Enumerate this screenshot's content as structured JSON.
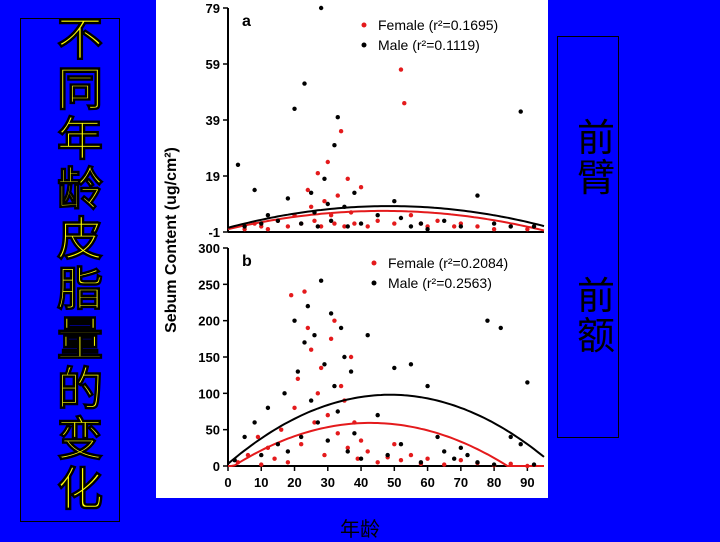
{
  "slide_title": "不同年龄皮脂量的变化",
  "right_labels": [
    "前臂",
    "前额"
  ],
  "x_caption": "年龄",
  "colors": {
    "background": "#0000ff",
    "title": "#ffff00",
    "female": "#e41a1c",
    "male": "#000000"
  },
  "chart_data": [
    {
      "type": "scatter",
      "panel_label": "a",
      "title": "",
      "ylabel": "Sebum Content (ug/cm²)",
      "ylim": [
        -1,
        79
      ],
      "yticks": [
        -1,
        19,
        39,
        59,
        79
      ],
      "xlim": [
        0,
        95
      ],
      "legend_position": "top-right",
      "series": [
        {
          "name": "Female",
          "r2": "0.1695",
          "legend": "Female (r²=0.1695)",
          "color": "#e41a1c",
          "fit": {
            "a": 0.0,
            "b": 0.28,
            "c": -0.003
          },
          "points": [
            [
              5,
              0
            ],
            [
              8,
              2
            ],
            [
              10,
              1
            ],
            [
              12,
              0
            ],
            [
              15,
              3
            ],
            [
              18,
              1
            ],
            [
              20,
              5
            ],
            [
              22,
              2
            ],
            [
              24,
              14
            ],
            [
              25,
              8
            ],
            [
              26,
              3
            ],
            [
              27,
              20
            ],
            [
              28,
              1
            ],
            [
              29,
              10
            ],
            [
              30,
              24
            ],
            [
              31,
              5
            ],
            [
              32,
              2
            ],
            [
              33,
              12
            ],
            [
              34,
              35
            ],
            [
              35,
              1
            ],
            [
              36,
              18
            ],
            [
              37,
              6
            ],
            [
              38,
              2
            ],
            [
              40,
              15
            ],
            [
              42,
              1
            ],
            [
              45,
              3
            ],
            [
              50,
              2
            ],
            [
              52,
              57
            ],
            [
              53,
              45
            ],
            [
              55,
              5
            ],
            [
              58,
              2
            ],
            [
              60,
              1
            ],
            [
              63,
              3
            ],
            [
              68,
              1
            ],
            [
              70,
              2
            ],
            [
              75,
              1
            ],
            [
              80,
              0
            ],
            [
              85,
              1
            ],
            [
              90,
              0
            ]
          ]
        },
        {
          "name": "Male",
          "r2": "0.1119",
          "legend": "Male (r²=0.1119)",
          "color": "#000000",
          "fit": {
            "a": 0.5,
            "b": 0.32,
            "c": -0.0033
          },
          "points": [
            [
              3,
              23
            ],
            [
              5,
              1
            ],
            [
              8,
              14
            ],
            [
              10,
              2
            ],
            [
              12,
              5
            ],
            [
              15,
              3
            ],
            [
              18,
              11
            ],
            [
              20,
              43
            ],
            [
              22,
              2
            ],
            [
              23,
              52
            ],
            [
              25,
              13
            ],
            [
              26,
              6
            ],
            [
              27,
              1
            ],
            [
              28,
              79
            ],
            [
              29,
              18
            ],
            [
              30,
              9
            ],
            [
              31,
              3
            ],
            [
              32,
              30
            ],
            [
              33,
              40
            ],
            [
              35,
              8
            ],
            [
              36,
              1
            ],
            [
              38,
              13
            ],
            [
              40,
              2
            ],
            [
              45,
              5
            ],
            [
              50,
              10
            ],
            [
              52,
              4
            ],
            [
              55,
              1
            ],
            [
              58,
              2
            ],
            [
              60,
              0
            ],
            [
              65,
              3
            ],
            [
              70,
              1
            ],
            [
              75,
              12
            ],
            [
              80,
              2
            ],
            [
              85,
              1
            ],
            [
              88,
              42
            ],
            [
              92,
              1
            ]
          ]
        }
      ]
    },
    {
      "type": "scatter",
      "panel_label": "b",
      "title": "",
      "xlabel": "",
      "ylim": [
        0,
        300
      ],
      "yticks": [
        0,
        50,
        100,
        150,
        200,
        250,
        300
      ],
      "xlim": [
        0,
        95
      ],
      "xticks": [
        0,
        10,
        20,
        30,
        40,
        50,
        60,
        70,
        80,
        90
      ],
      "legend_position": "top-right",
      "series": [
        {
          "name": "Female",
          "r2": "0.2084",
          "legend": "Female (r²=0.2084)",
          "color": "#e41a1c",
          "fit": {
            "a": -5,
            "b": 3.0,
            "c": -0.035
          },
          "points": [
            [
              3,
              5
            ],
            [
              6,
              15
            ],
            [
              9,
              40
            ],
            [
              10,
              2
            ],
            [
              12,
              25
            ],
            [
              14,
              10
            ],
            [
              16,
              50
            ],
            [
              18,
              5
            ],
            [
              19,
              235
            ],
            [
              20,
              80
            ],
            [
              21,
              120
            ],
            [
              22,
              30
            ],
            [
              23,
              240
            ],
            [
              24,
              190
            ],
            [
              25,
              160
            ],
            [
              26,
              60
            ],
            [
              27,
              100
            ],
            [
              28,
              135
            ],
            [
              29,
              15
            ],
            [
              30,
              70
            ],
            [
              31,
              175
            ],
            [
              32,
              200
            ],
            [
              33,
              45
            ],
            [
              34,
              110
            ],
            [
              35,
              90
            ],
            [
              36,
              25
            ],
            [
              37,
              150
            ],
            [
              38,
              60
            ],
            [
              39,
              10
            ],
            [
              40,
              35
            ],
            [
              42,
              20
            ],
            [
              45,
              5
            ],
            [
              48,
              12
            ],
            [
              50,
              30
            ],
            [
              52,
              8
            ],
            [
              55,
              15
            ],
            [
              58,
              3
            ],
            [
              60,
              10
            ],
            [
              65,
              2
            ],
            [
              70,
              8
            ],
            [
              75,
              4
            ],
            [
              80,
              1
            ],
            [
              85,
              3
            ],
            [
              90,
              0
            ]
          ]
        },
        {
          "name": "Male",
          "r2": "0.2563",
          "legend": "Male (r²=0.2563)",
          "color": "#000000",
          "fit": {
            "a": 3,
            "b": 3.9,
            "c": -0.04
          },
          "points": [
            [
              2,
              8
            ],
            [
              5,
              40
            ],
            [
              8,
              60
            ],
            [
              10,
              15
            ],
            [
              12,
              80
            ],
            [
              15,
              30
            ],
            [
              17,
              100
            ],
            [
              18,
              20
            ],
            [
              20,
              200
            ],
            [
              21,
              130
            ],
            [
              22,
              40
            ],
            [
              23,
              170
            ],
            [
              24,
              220
            ],
            [
              25,
              90
            ],
            [
              26,
              180
            ],
            [
              27,
              60
            ],
            [
              28,
              255
            ],
            [
              29,
              140
            ],
            [
              30,
              35
            ],
            [
              31,
              210
            ],
            [
              32,
              110
            ],
            [
              33,
              75
            ],
            [
              34,
              190
            ],
            [
              35,
              150
            ],
            [
              36,
              20
            ],
            [
              37,
              130
            ],
            [
              38,
              45
            ],
            [
              40,
              10
            ],
            [
              42,
              180
            ],
            [
              45,
              70
            ],
            [
              48,
              15
            ],
            [
              50,
              135
            ],
            [
              52,
              30
            ],
            [
              55,
              140
            ],
            [
              58,
              5
            ],
            [
              60,
              110
            ],
            [
              63,
              40
            ],
            [
              65,
              20
            ],
            [
              68,
              10
            ],
            [
              70,
              25
            ],
            [
              72,
              15
            ],
            [
              75,
              5
            ],
            [
              78,
              200
            ],
            [
              80,
              2
            ],
            [
              82,
              190
            ],
            [
              85,
              40
            ],
            [
              88,
              30
            ],
            [
              90,
              115
            ],
            [
              92,
              2
            ]
          ]
        }
      ]
    }
  ]
}
